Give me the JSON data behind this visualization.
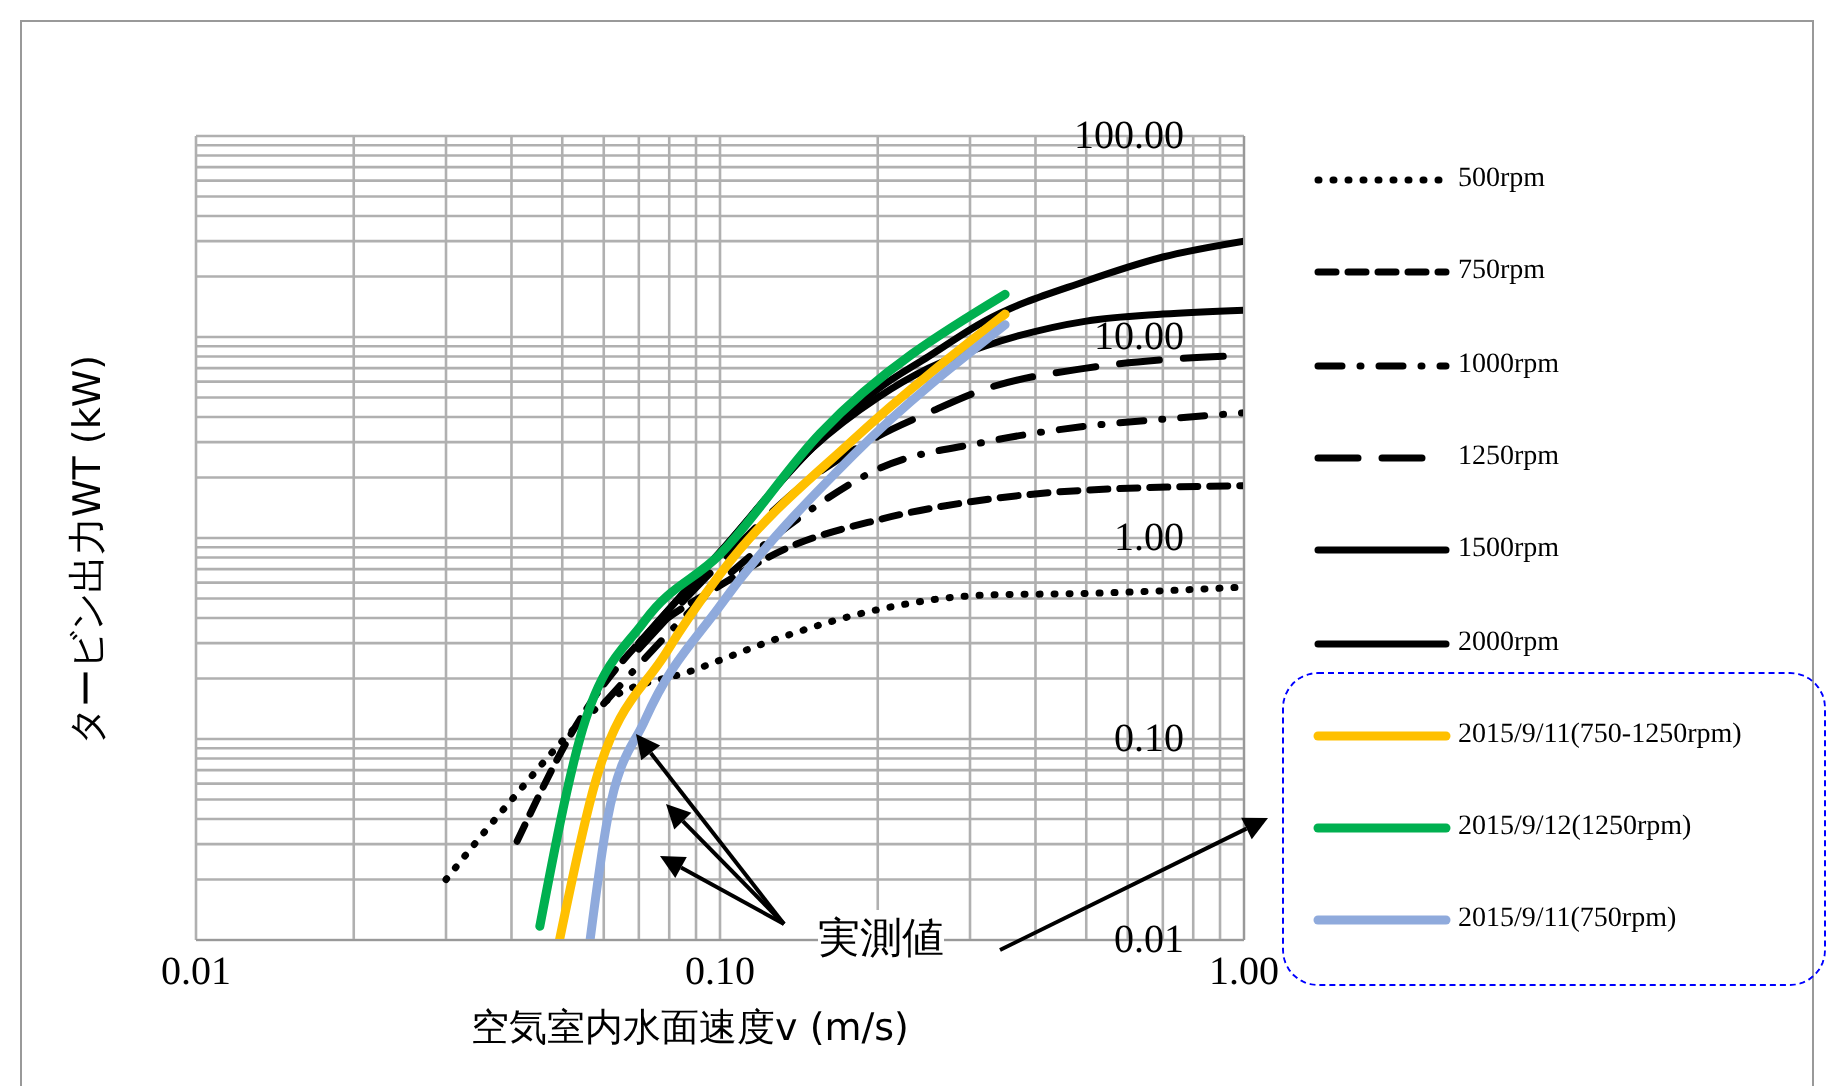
{
  "chart_data": {
    "type": "line",
    "xlabel": "空気室内水面速度v (m/s)",
    "ylabel": "タービン出力WT (kW)",
    "log": "xy",
    "grid": true,
    "legend": "right",
    "annotations": [
      "実測値"
    ],
    "xlim": [
      0.01,
      1
    ],
    "ylim": [
      0.01,
      100
    ],
    "xticks": [
      {
        "value": 0.01,
        "label": "0.01"
      },
      {
        "value": 0.02,
        "label": null
      },
      {
        "value": 0.03,
        "label": null
      },
      {
        "value": 0.04,
        "label": null
      },
      {
        "value": 0.05,
        "label": null
      },
      {
        "value": 0.06,
        "label": null
      },
      {
        "value": 0.07,
        "label": null
      },
      {
        "value": 0.08,
        "label": null
      },
      {
        "value": 0.09,
        "label": null
      },
      {
        "value": 0.1,
        "label": "0.10"
      },
      {
        "value": 0.2,
        "label": null
      },
      {
        "value": 0.3,
        "label": null
      },
      {
        "value": 0.4,
        "label": null
      },
      {
        "value": 0.5,
        "label": null
      },
      {
        "value": 0.6,
        "label": null
      },
      {
        "value": 0.7,
        "label": null
      },
      {
        "value": 0.8,
        "label": null
      },
      {
        "value": 0.9,
        "label": null
      },
      {
        "value": 1,
        "label": "1.00"
      }
    ],
    "yticks": [
      {
        "value": 0.01,
        "label": "0.01"
      },
      {
        "value": 0.02,
        "label": null
      },
      {
        "value": 0.03,
        "label": null
      },
      {
        "value": 0.04,
        "label": null
      },
      {
        "value": 0.05,
        "label": null
      },
      {
        "value": 0.06,
        "label": null
      },
      {
        "value": 0.07,
        "label": null
      },
      {
        "value": 0.08,
        "label": null
      },
      {
        "value": 0.09,
        "label": null
      },
      {
        "value": 0.1,
        "label": "0.10"
      },
      {
        "value": 0.2,
        "label": null
      },
      {
        "value": 0.3,
        "label": null
      },
      {
        "value": 0.4,
        "label": null
      },
      {
        "value": 0.5,
        "label": null
      },
      {
        "value": 0.6,
        "label": null
      },
      {
        "value": 0.7,
        "label": null
      },
      {
        "value": 0.8,
        "label": null
      },
      {
        "value": 0.9,
        "label": null
      },
      {
        "value": 1,
        "label": "1.00"
      },
      {
        "value": 2,
        "label": null
      },
      {
        "value": 3,
        "label": null
      },
      {
        "value": 4,
        "label": null
      },
      {
        "value": 5,
        "label": null
      },
      {
        "value": 6,
        "label": null
      },
      {
        "value": 7,
        "label": null
      },
      {
        "value": 8,
        "label": null
      },
      {
        "value": 9,
        "label": null
      },
      {
        "value": 10,
        "label": "10.00"
      },
      {
        "value": 20,
        "label": null
      },
      {
        "value": 30,
        "label": null
      },
      {
        "value": 40,
        "label": null
      },
      {
        "value": 50,
        "label": null
      },
      {
        "value": 60,
        "label": null
      },
      {
        "value": 70,
        "label": null
      },
      {
        "value": 80,
        "label": null
      },
      {
        "value": 90,
        "label": null
      },
      {
        "value": 100,
        "label": "100.00"
      }
    ],
    "series": [
      {
        "name": "500rpm",
        "color": "#000000",
        "line_style": "dotted",
        "x": [
          0.03,
          0.039,
          0.061,
          0.089,
          0.133,
          0.2,
          0.32,
          0.5,
          1.0
        ],
        "values": [
          0.02,
          0.046,
          0.156,
          0.22,
          0.325,
          0.44,
          0.52,
          0.53,
          0.57
        ]
      },
      {
        "name": "750rpm",
        "color": "#000000",
        "line_style": "dashed",
        "x": [
          0.041,
          0.054,
          0.07,
          0.1,
          0.133,
          0.2,
          0.32,
          0.5,
          1.0
        ],
        "values": [
          0.031,
          0.125,
          0.3,
          0.58,
          0.88,
          1.23,
          1.55,
          1.73,
          1.82
        ]
      },
      {
        "name": "1000rpm",
        "color": "#000000",
        "line_style": "dashdot",
        "x": [
          0.06,
          0.1,
          0.15,
          0.2,
          0.32,
          0.5,
          0.7,
          1.0
        ],
        "values": [
          0.15,
          0.6,
          1.4,
          2.2,
          3.0,
          3.6,
          3.9,
          4.2
        ]
      },
      {
        "name": "1250rpm",
        "color": "#000000",
        "line_style": "longdash",
        "x": [
          0.07,
          0.1,
          0.15,
          0.2,
          0.25,
          0.32,
          0.5,
          0.7,
          1.0
        ],
        "values": [
          0.28,
          0.75,
          2.0,
          3.2,
          4.2,
          5.5,
          7,
          7.7,
          8.1
        ]
      },
      {
        "name": "1500rpm",
        "color": "#000000",
        "line_style": "solid",
        "x": [
          0.07,
          0.1,
          0.15,
          0.2,
          0.25,
          0.32,
          0.5,
          0.7,
          1.0
        ],
        "values": [
          0.3,
          0.85,
          2.8,
          5.0,
          7.0,
          9.0,
          12,
          13,
          13.6
        ]
      },
      {
        "name": "2000rpm",
        "color": "#000000",
        "line_style": "solid",
        "x": [
          0.07,
          0.1,
          0.15,
          0.2,
          0.25,
          0.32,
          0.5,
          0.7,
          1.0
        ],
        "values": [
          0.3,
          0.85,
          2.8,
          5.5,
          8,
          12,
          19,
          25,
          30
        ]
      },
      {
        "name": "2015/9/11(750-1250rpm)",
        "color": "#ffc000",
        "line_style": "solid",
        "x": [
          0.0494,
          0.0575,
          0.079,
          0.1,
          0.18,
          0.35
        ],
        "values": [
          0.01,
          0.058,
          0.27,
          0.66,
          3.1,
          13
        ]
      },
      {
        "name": "2015/9/12(1250rpm)",
        "color": "#00b050",
        "line_style": "solid",
        "x": [
          0.0453,
          0.054,
          0.072,
          0.1,
          0.155,
          0.35
        ],
        "values": [
          0.0117,
          0.1,
          0.39,
          0.83,
          3.3,
          16.3
        ]
      },
      {
        "name": "2015/9/11(750rpm)",
        "color": "#8faadc",
        "line_style": "solid",
        "x": [
          0.0565,
          0.061,
          0.072,
          0.1,
          0.18,
          0.35
        ],
        "values": [
          0.01,
          0.04,
          0.125,
          0.46,
          2.6,
          11.5
        ]
      }
    ]
  }
}
